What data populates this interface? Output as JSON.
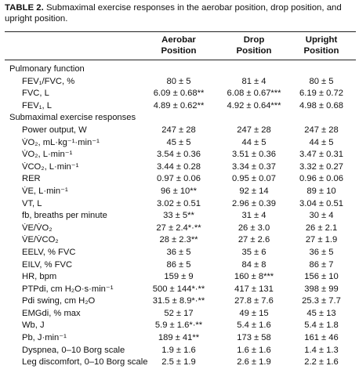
{
  "caption": {
    "label": "TABLE 2.",
    "text": " Submaximal exercise responses in the aerobar position, drop position, and upright position."
  },
  "columns": [
    [
      "Aerobar",
      "Position"
    ],
    [
      "Drop",
      "Position"
    ],
    [
      "Upright",
      "Position"
    ]
  ],
  "rows": [
    {
      "type": "section",
      "label": "Pulmonary function"
    },
    {
      "label": "FEV₁/FVC, %",
      "values": [
        "80 ± 5",
        "81 ± 4",
        "80 ± 5"
      ]
    },
    {
      "label": "FVC, L",
      "values": [
        "6.09 ± 0.68**",
        "6.08 ± 0.67***",
        "6.19 ± 0.72"
      ]
    },
    {
      "label": "FEV₁, L",
      "values": [
        "4.89 ± 0.62**",
        "4.92 ± 0.64***",
        "4.98 ± 0.68"
      ]
    },
    {
      "type": "section",
      "label": "Submaximal exercise responses"
    },
    {
      "label": "Power output, W",
      "values": [
        "247 ± 28",
        "247 ± 28",
        "247 ± 28"
      ]
    },
    {
      "label": "V̇O₂, mL·kg⁻¹·min⁻¹",
      "values": [
        "45 ± 5",
        "44 ± 5",
        "44 ± 5"
      ]
    },
    {
      "label": "V̇O₂, L·min⁻¹",
      "values": [
        "3.54 ± 0.36",
        "3.51 ± 0.36",
        "3.47 ± 0.31"
      ]
    },
    {
      "label": "V̇CO₂, L·min⁻¹",
      "values": [
        "3.44 ± 0.28",
        "3.34 ± 0.37",
        "3.32 ± 0.27"
      ]
    },
    {
      "label": "RER",
      "values": [
        "0.97 ± 0.06",
        "0.95 ± 0.07",
        "0.96 ± 0.06"
      ]
    },
    {
      "label": "V̇E, L·min⁻¹",
      "values": [
        "96 ± 10**",
        "92 ± 14",
        "89 ± 10"
      ]
    },
    {
      "label": "VT, L",
      "values": [
        "3.02 ± 0.51",
        "2.96 ± 0.39",
        "3.04 ± 0.51"
      ]
    },
    {
      "label": "fb, breaths per minute",
      "values": [
        "33 ± 5**",
        "31 ± 4",
        "30 ± 4"
      ]
    },
    {
      "label": "V̇E/V̇O₂",
      "values": [
        "27 ± 2.4*·**",
        "26 ± 3.0",
        "26 ± 2.1"
      ]
    },
    {
      "label": "V̇E/V̇CO₂",
      "values": [
        "28 ± 2.3**",
        "27 ± 2.6",
        "27 ± 1.9"
      ]
    },
    {
      "label": "EELV, % FVC",
      "values": [
        "36 ± 5",
        "35 ± 6",
        "36 ± 5"
      ]
    },
    {
      "label": "EILV, % FVC",
      "values": [
        "86 ± 5",
        "84 ± 8",
        "86 ± 7"
      ]
    },
    {
      "label": "HR, bpm",
      "values": [
        "159 ± 9",
        "160 ± 8***",
        "156 ± 10"
      ]
    },
    {
      "label": "PTPdi, cm H₂O·s·min⁻¹",
      "values": [
        "500 ± 144*·**",
        "417 ± 131",
        "398 ± 99"
      ]
    },
    {
      "label": "Pdi swing, cm H₂O",
      "values": [
        "31.5 ± 8.9*·**",
        "27.8 ± 7.6",
        "25.3 ± 7.7"
      ]
    },
    {
      "label": "EMGdi, % max",
      "values": [
        "52 ± 17",
        "49 ± 15",
        "45 ± 13"
      ]
    },
    {
      "label": "Wb, J",
      "values": [
        "5.9 ± 1.6*·**",
        "5.4 ± 1.6",
        "5.4 ± 1.8"
      ]
    },
    {
      "label": "Pb, J·min⁻¹",
      "values": [
        "189 ± 41**",
        "173 ± 58",
        "161 ± 46"
      ]
    },
    {
      "label": "Dyspnea, 0–10 Borg scale",
      "values": [
        "1.9 ± 1.6",
        "1.6 ± 1.6",
        "1.4 ± 1.3"
      ]
    },
    {
      "label": "Leg discomfort, 0–10 Borg scale",
      "values": [
        "2.5 ± 1.9",
        "2.6 ± 1.9",
        "2.2 ± 1.6"
      ]
    }
  ]
}
